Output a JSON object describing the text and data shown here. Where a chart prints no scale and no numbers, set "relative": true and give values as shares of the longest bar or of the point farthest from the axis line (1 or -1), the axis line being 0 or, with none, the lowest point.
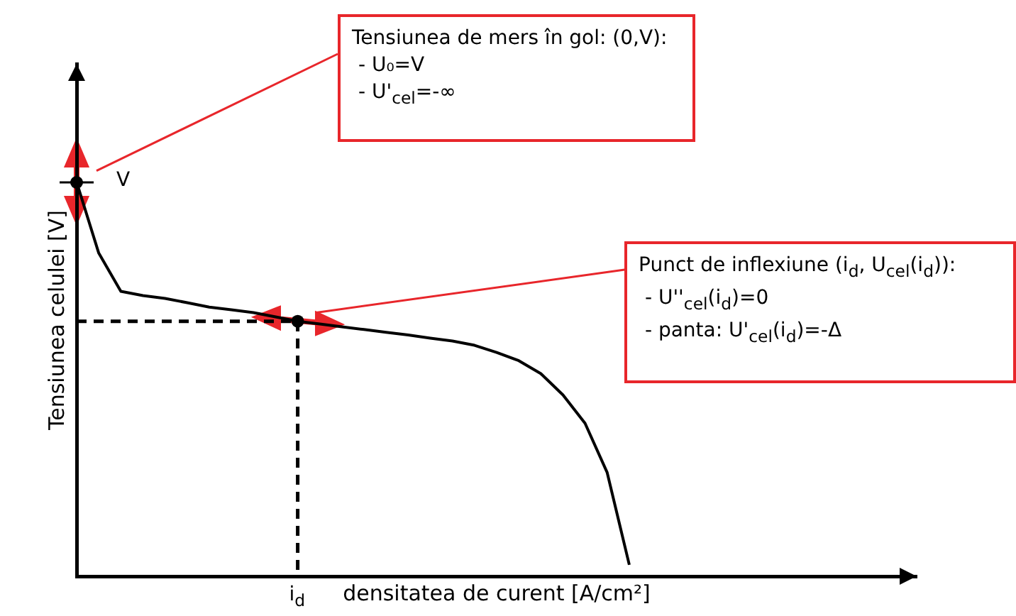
{
  "chart_data": {
    "type": "line",
    "relative": true,
    "xlabel": "densitatea de curent [A/cm²]",
    "ylabel": "Tensiunea celulei [V]",
    "categories": [
      null,
      null,
      null,
      null,
      null,
      null,
      null,
      null,
      null,
      null,
      null,
      null,
      null,
      null,
      null,
      null,
      null,
      null,
      null,
      null,
      null,
      null,
      null,
      null,
      null,
      null,
      null,
      null,
      null,
      null,
      null,
      null,
      null,
      null,
      null,
      null,
      null,
      null,
      null
    ],
    "series": [
      {
        "color": "#000000",
        "values": [
          1,
          0.82,
          0.723,
          0.712,
          0.705,
          0.694,
          0.683,
          0.676,
          0.669,
          0.658,
          0.647,
          0.64,
          0.633,
          0.626,
          0.619,
          0.612,
          0.604,
          0.597,
          0.586,
          0.568,
          0.547,
          0.514,
          0.46,
          0.388,
          0.263,
          0.029,
          null,
          null,
          null,
          null,
          null,
          null,
          null,
          null,
          null,
          null,
          null,
          null,
          null
        ]
      }
    ],
    "ref_lines": [
      {
        "axis": "y",
        "value": 0.647,
        "line_style": "dashed",
        "color": "#000000"
      }
    ],
    "annotations": [
      "Tensiunea de mers în gol: (0,V):\n - U₀=V\n - U'$_{cel}$=-∞",
      "Punct de inflexiune (i$_{d}$, U$_{cel}$(i$_{d}$)):\n - U''$_{cel}$(i$_{d}$)=0\n - panta: U'$_{cel}$(i$_{d}$)=-Δ",
      "V",
      "i$_{d}$"
    ],
    "grid": false,
    "legend": false
  }
}
